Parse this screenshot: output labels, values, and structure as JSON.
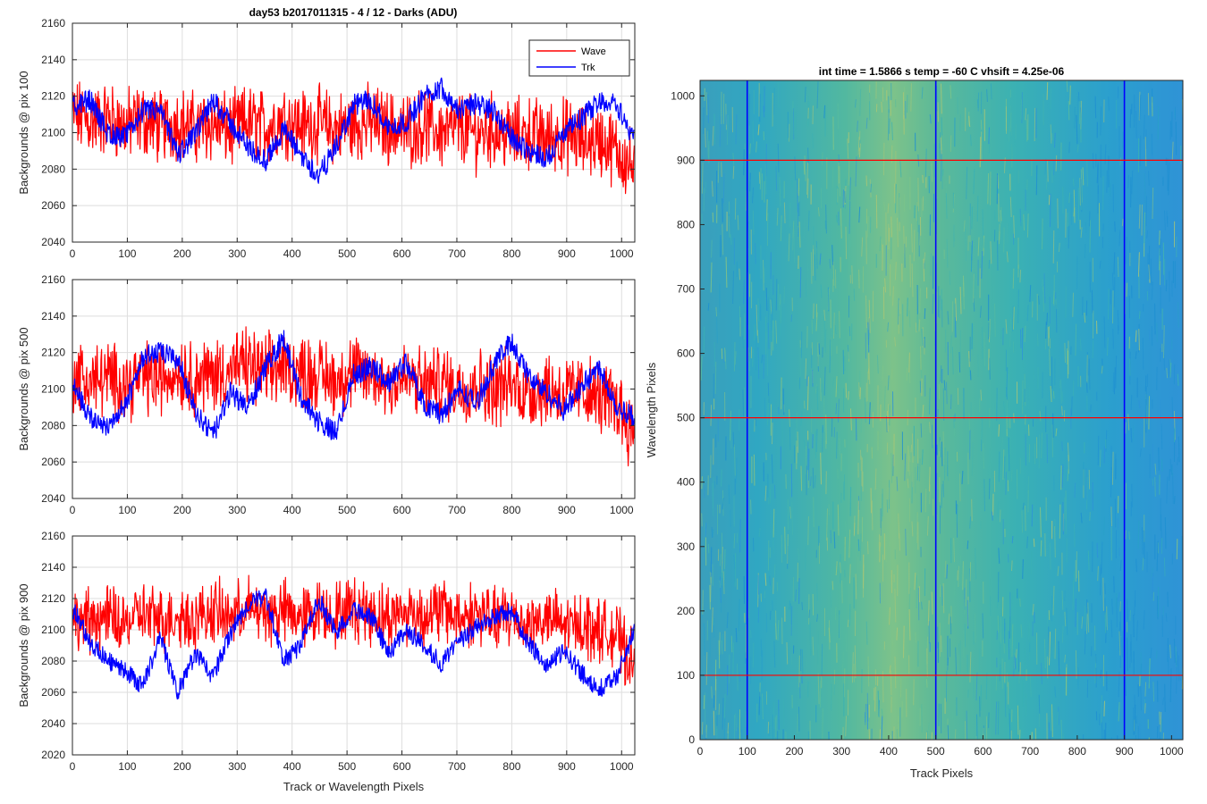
{
  "figure_title": "day53 b2017011315 - 4 / 12 - Darks (ADU)",
  "colors": {
    "wave": "#ff0000",
    "trk": "#0000ff",
    "grid": "#dedede",
    "axis": "#262626"
  },
  "chart_data": [
    {
      "type": "line",
      "title": "day53 b2017011315 - 4 / 12 - Darks (ADU)",
      "xlabel": "",
      "ylabel": "Backgrounds @ pix 100",
      "xlim": [
        0,
        1024
      ],
      "ylim": [
        2040,
        2160
      ],
      "xticks": [
        0,
        100,
        200,
        300,
        400,
        500,
        600,
        700,
        800,
        900,
        1000
      ],
      "yticks": [
        2040,
        2060,
        2080,
        2100,
        2120,
        2140,
        2160
      ],
      "grid": true,
      "legend": {
        "location": "top-right",
        "entries": [
          "Wave",
          "Trk"
        ]
      },
      "x": [
        0,
        32,
        64,
        96,
        128,
        160,
        192,
        224,
        256,
        288,
        320,
        352,
        384,
        416,
        448,
        480,
        512,
        544,
        576,
        608,
        640,
        672,
        704,
        736,
        768,
        800,
        832,
        864,
        896,
        928,
        960,
        992,
        1023
      ],
      "series": [
        {
          "name": "Wave",
          "color": "#ff0000",
          "values": [
            2110,
            2106,
            2108,
            2104,
            2107,
            2103,
            2106,
            2102,
            2105,
            2101,
            2106,
            2103,
            2108,
            2104,
            2105,
            2102,
            2104,
            2106,
            2103,
            2101,
            2104,
            2100,
            2103,
            2099,
            2102,
            2098,
            2100,
            2097,
            2099,
            2095,
            2096,
            2090,
            2080
          ]
        },
        {
          "name": "Trk",
          "color": "#0000ff",
          "values": [
            2114,
            2118,
            2100,
            2097,
            2112,
            2112,
            2088,
            2099,
            2118,
            2105,
            2092,
            2084,
            2102,
            2088,
            2076,
            2092,
            2115,
            2118,
            2102,
            2106,
            2120,
            2125,
            2112,
            2116,
            2112,
            2097,
            2090,
            2086,
            2100,
            2108,
            2118,
            2115,
            2096
          ]
        }
      ]
    },
    {
      "type": "line",
      "title": "",
      "xlabel": "",
      "ylabel": "Backgrounds @ pix 500",
      "xlim": [
        0,
        1024
      ],
      "ylim": [
        2040,
        2160
      ],
      "xticks": [
        0,
        100,
        200,
        300,
        400,
        500,
        600,
        700,
        800,
        900,
        1000
      ],
      "yticks": [
        2040,
        2060,
        2080,
        2100,
        2120,
        2140,
        2160
      ],
      "grid": true,
      "x": [
        0,
        32,
        64,
        96,
        128,
        160,
        192,
        224,
        256,
        288,
        320,
        352,
        384,
        416,
        448,
        480,
        512,
        544,
        576,
        608,
        640,
        672,
        704,
        736,
        768,
        800,
        832,
        864,
        896,
        928,
        960,
        992,
        1023
      ],
      "series": [
        {
          "name": "Wave",
          "color": "#ff0000",
          "values": [
            2108,
            2104,
            2106,
            2103,
            2107,
            2105,
            2110,
            2106,
            2108,
            2111,
            2113,
            2109,
            2112,
            2110,
            2108,
            2105,
            2109,
            2107,
            2104,
            2106,
            2102,
            2104,
            2101,
            2103,
            2100,
            2102,
            2098,
            2101,
            2097,
            2099,
            2095,
            2092,
            2075
          ]
        },
        {
          "name": "Trk",
          "color": "#0000ff",
          "values": [
            2105,
            2084,
            2080,
            2090,
            2118,
            2120,
            2116,
            2088,
            2074,
            2098,
            2090,
            2112,
            2128,
            2096,
            2082,
            2076,
            2108,
            2112,
            2104,
            2115,
            2092,
            2086,
            2100,
            2092,
            2114,
            2126,
            2106,
            2098,
            2088,
            2102,
            2112,
            2090,
            2085
          ]
        }
      ]
    },
    {
      "type": "line",
      "title": "",
      "xlabel": "Track or Wavelength Pixels",
      "ylabel": "Backgrounds @ pix 900",
      "xlim": [
        0,
        1024
      ],
      "ylim": [
        2020,
        2160
      ],
      "xticks": [
        0,
        100,
        200,
        300,
        400,
        500,
        600,
        700,
        800,
        900,
        1000
      ],
      "yticks": [
        2020,
        2040,
        2060,
        2080,
        2100,
        2120,
        2140,
        2160
      ],
      "grid": true,
      "x": [
        0,
        32,
        64,
        96,
        128,
        160,
        192,
        224,
        256,
        288,
        320,
        352,
        384,
        416,
        448,
        480,
        512,
        544,
        576,
        608,
        640,
        672,
        704,
        736,
        768,
        800,
        832,
        864,
        896,
        928,
        960,
        992,
        1023
      ],
      "series": [
        {
          "name": "Wave",
          "color": "#ff0000",
          "values": [
            2104,
            2106,
            2108,
            2104,
            2110,
            2106,
            2109,
            2107,
            2112,
            2108,
            2114,
            2110,
            2112,
            2108,
            2112,
            2110,
            2114,
            2111,
            2108,
            2112,
            2109,
            2113,
            2108,
            2111,
            2106,
            2109,
            2104,
            2107,
            2102,
            2104,
            2100,
            2096,
            2075
          ]
        },
        {
          "name": "Trk",
          "color": "#0000ff",
          "values": [
            2114,
            2092,
            2080,
            2074,
            2064,
            2095,
            2060,
            2085,
            2070,
            2098,
            2116,
            2122,
            2080,
            2090,
            2120,
            2098,
            2114,
            2108,
            2085,
            2100,
            2090,
            2078,
            2092,
            2102,
            2108,
            2112,
            2090,
            2078,
            2086,
            2072,
            2062,
            2070,
            2100
          ]
        }
      ]
    },
    {
      "type": "heatmap",
      "title": "int time = 1.5866 s    temp = -60 C    vhsift = 4.25e-06",
      "xlabel": "Track Pixels",
      "ylabel": "Wavelength Pixels",
      "xlim": [
        0,
        1024
      ],
      "ylim": [
        0,
        1024
      ],
      "xticks": [
        0,
        100,
        200,
        300,
        400,
        500,
        600,
        700,
        800,
        900,
        1000
      ],
      "yticks": [
        0,
        100,
        200,
        300,
        400,
        500,
        600,
        700,
        800,
        900,
        1000
      ],
      "grid": false,
      "colormap": "parula",
      "vertical_markers": {
        "color": "#0000ff",
        "x": [
          100,
          500,
          900
        ]
      },
      "horizontal_markers": {
        "color": "#ff0000",
        "y": [
          100,
          500,
          900
        ]
      }
    }
  ]
}
